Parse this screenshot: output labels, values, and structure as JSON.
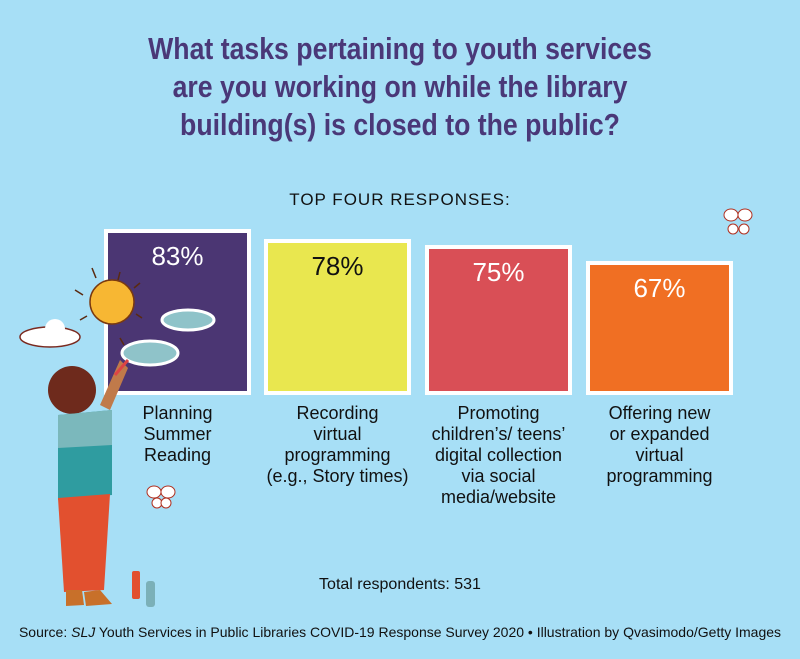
{
  "title_lines": [
    "What tasks pertaining to youth services",
    "are you working on while the library",
    "building(s) is closed to the public?"
  ],
  "chart_data": {
    "type": "bar",
    "title": "What tasks pertaining to youth services are you working on while the library building(s) is closed to the public?",
    "subtitle": "TOP FOUR RESPONSES:",
    "categories": [
      [
        "Planning",
        "Summer",
        "Reading"
      ],
      [
        "Recording",
        "virtual",
        "programming",
        "(e.g., Story times)"
      ],
      [
        "Promoting",
        "children’s/ teens’",
        "digital collection",
        "via social",
        "media/website"
      ],
      [
        "Offering new",
        "or expanded",
        "virtual",
        "programming"
      ]
    ],
    "values": [
      83,
      78,
      75,
      67
    ],
    "value_labels": [
      "83%",
      "78%",
      "75%",
      "67%"
    ],
    "colors": [
      "#4b3673",
      "#e9e74f",
      "#d94f56",
      "#f06f23"
    ],
    "label_colors": [
      "#ffffff",
      "#111111",
      "#ffffff",
      "#ffffff"
    ],
    "ylim": [
      0,
      100
    ],
    "grid": false
  },
  "total": "Total respondents: 531",
  "source": {
    "prefix": "Source: ",
    "italic": "SLJ",
    "rest": " Youth Services in Public Libraries COVID-19 Response Survey 2020  •  Illustration by Qvasimodo/Getty Images"
  }
}
